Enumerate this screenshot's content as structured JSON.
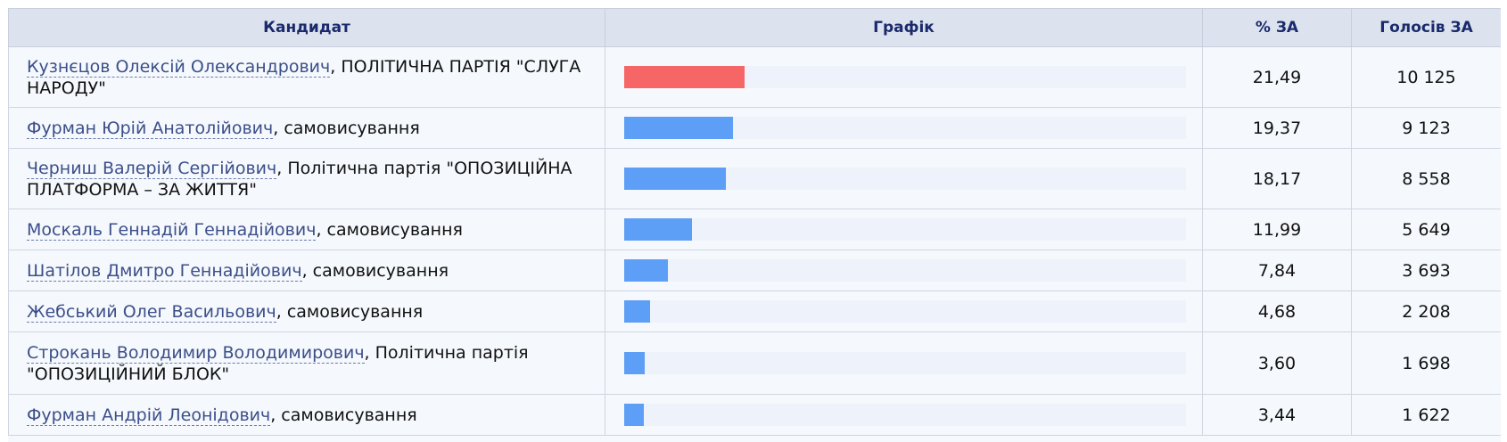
{
  "table": {
    "headers": [
      "Кандидат",
      "Графік",
      "% ЗА",
      "Голосів ЗА"
    ],
    "rows": [
      {
        "name": "Кузнєцов Олексій Олександрович",
        "party": ", ПОЛІТИЧНА ПАРТІЯ \"СЛУГА НАРОДУ\"",
        "percent": {
          "value": 21.49,
          "label": "21,49"
        },
        "votes": "10 125",
        "bar_color": "#f76666"
      },
      {
        "name": "Фурман Юрій Анатолійович",
        "party": ", самовисування",
        "percent": {
          "value": 19.37,
          "label": "19,37"
        },
        "votes": "9 123",
        "bar_color": "#5d9ef6"
      },
      {
        "name": "Черниш Валерій Сергійович",
        "party": ", Політична партія \"ОПОЗИЦІЙНА ПЛАТФОРМА – ЗА ЖИТТЯ\"",
        "percent": {
          "value": 18.17,
          "label": "18,17"
        },
        "votes": "8 558",
        "bar_color": "#5d9ef6"
      },
      {
        "name": "Москаль Геннадій Геннадійович",
        "party": ", самовисування",
        "percent": {
          "value": 11.99,
          "label": "11,99"
        },
        "votes": "5 649",
        "bar_color": "#5d9ef6"
      },
      {
        "name": "Шатілов Дмитро Геннадійович",
        "party": ", самовисування",
        "percent": {
          "value": 7.84,
          "label": "7,84"
        },
        "votes": "3 693",
        "bar_color": "#5d9ef6"
      },
      {
        "name": "Жебський Олег Васильович",
        "party": ", самовисування",
        "percent": {
          "value": 4.68,
          "label": "4,68"
        },
        "votes": "2 208",
        "bar_color": "#5d9ef6"
      },
      {
        "name": "Строкань Володимир Володимирович",
        "party": ", Політична партія \"ОПОЗИЦІЙНИЙ БЛОК\"",
        "percent": {
          "value": 3.6,
          "label": "3,60"
        },
        "votes": "1 698",
        "bar_color": "#5d9ef6"
      },
      {
        "name": "Фурман Андрій Леонідович",
        "party": ", самовисування",
        "percent": {
          "value": 3.44,
          "label": "3,44"
        },
        "votes": "1 622",
        "bar_color": "#5d9ef6"
      }
    ]
  }
}
